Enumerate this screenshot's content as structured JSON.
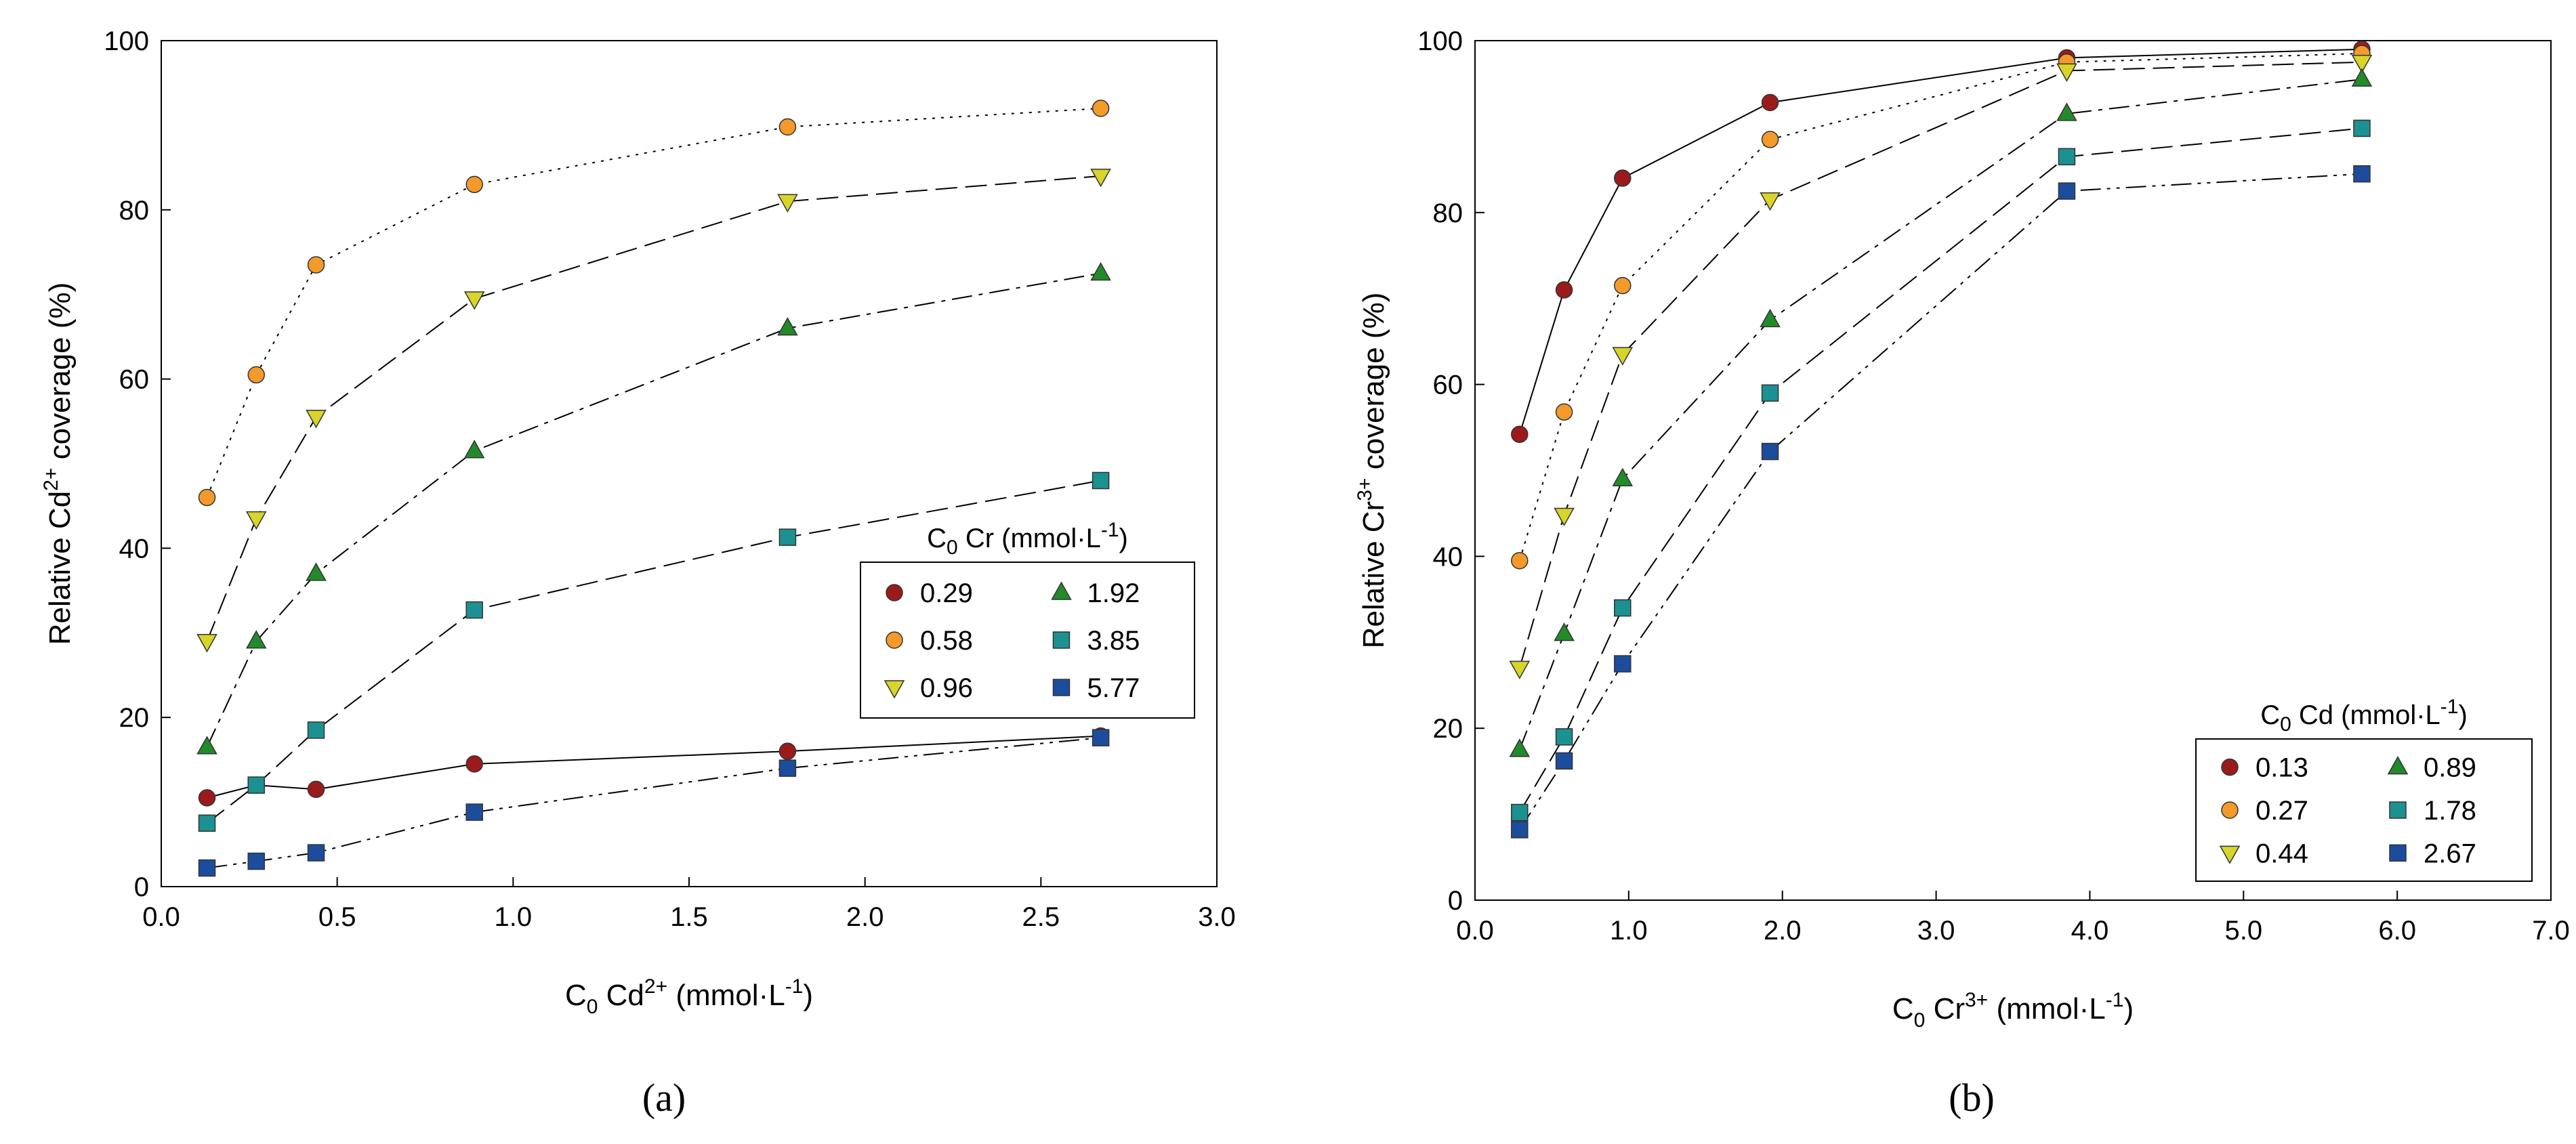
{
  "panel_labels": [
    "(a)",
    "(b)"
  ],
  "chart_data": [
    {
      "type": "line",
      "panel": "a",
      "xlabel": {
        "main": "C",
        "sub": "0",
        "species": "Cd",
        "sup": "2+",
        "unit": "(mmol·L",
        "unit_sup": "-1",
        "unit_end": ")"
      },
      "ylabel": {
        "main": "Relative Cd",
        "sup": "2+",
        "rest": "coverage (%)"
      },
      "xlim": [
        0,
        3
      ],
      "ylim": [
        0,
        100
      ],
      "xticks": [
        0,
        0.5,
        1,
        1.5,
        2,
        2.5,
        3
      ],
      "xtick_labels": [
        "0.0",
        "0.5",
        "1.0",
        "1.5",
        "2.0",
        "2.5",
        "3.0"
      ],
      "yticks": [
        0,
        20,
        40,
        60,
        80,
        100
      ],
      "ytick_labels": [
        "0",
        "20",
        "40",
        "60",
        "80",
        "100"
      ],
      "legend": {
        "title_main": "C",
        "title_sub": "0",
        "title_rest": "Cr (mmol·L",
        "title_sup": "-1",
        "title_end": ")",
        "position": "middle-right"
      },
      "x": [
        0.13,
        0.27,
        0.44,
        0.89,
        1.78,
        2.67
      ],
      "series": [
        {
          "name": "0.29",
          "marker": "circle",
          "color": "#9b1b1b",
          "dash": "solid",
          "values": [
            10.5,
            12,
            11.5,
            14.5,
            16,
            17.8
          ]
        },
        {
          "name": "0.58",
          "marker": "circle",
          "color": "#f39a2b",
          "dash": "dotted",
          "values": [
            46,
            60.5,
            73.5,
            83,
            89.8,
            92
          ]
        },
        {
          "name": "0.96",
          "marker": "triangle-down",
          "color": "#d8d42a",
          "dash": "longdash",
          "values": [
            29,
            43.5,
            55.5,
            69.5,
            81,
            84
          ]
        },
        {
          "name": "1.92",
          "marker": "triangle-up",
          "color": "#238a2a",
          "dash": "dashdot",
          "values": [
            16.5,
            29,
            37,
            51.5,
            66,
            72.5
          ]
        },
        {
          "name": "3.85",
          "marker": "square",
          "color": "#1c9191",
          "dash": "longdash",
          "values": [
            7.5,
            12,
            18.5,
            32.7,
            41.3,
            48
          ]
        },
        {
          "name": "5.77",
          "marker": "square",
          "color": "#1c4d9c",
          "dash": "dashdotdot",
          "values": [
            2.2,
            3,
            4,
            8.8,
            14,
            17.6
          ]
        }
      ]
    },
    {
      "type": "line",
      "panel": "b",
      "xlabel": {
        "main": "C",
        "sub": "0",
        "species": "Cr",
        "sup": "3+",
        "unit": "(mmol·L",
        "unit_sup": "-1",
        "unit_end": ")"
      },
      "ylabel": {
        "main": "Relative Cr",
        "sup": "3+",
        "rest": "coverage (%)"
      },
      "xlim": [
        0,
        7
      ],
      "ylim": [
        0,
        100
      ],
      "xticks": [
        0,
        1,
        2,
        3,
        4,
        5,
        6,
        7
      ],
      "xtick_labels": [
        "0.0",
        "1.0",
        "2.0",
        "3.0",
        "4.0",
        "5.0",
        "6.0",
        "7.0"
      ],
      "yticks": [
        0,
        20,
        40,
        60,
        80,
        100
      ],
      "ytick_labels": [
        "0",
        "20",
        "40",
        "60",
        "80",
        "100"
      ],
      "legend": {
        "title_main": "C",
        "title_sub": "0",
        "title_rest": "Cd (mmol·L",
        "title_sup": "-1",
        "title_end": ")",
        "position": "bottom-right"
      },
      "x": [
        0.29,
        0.58,
        0.96,
        1.92,
        3.85,
        5.77
      ],
      "series": [
        {
          "name": "0.13",
          "marker": "circle",
          "color": "#9b1b1b",
          "dash": "solid",
          "values": [
            54.2,
            71,
            84,
            92.8,
            98,
            99
          ]
        },
        {
          "name": "0.27",
          "marker": "circle",
          "color": "#f39a2b",
          "dash": "dotted",
          "values": [
            39.5,
            56.8,
            71.5,
            88.5,
            97.5,
            98.5
          ]
        },
        {
          "name": "0.44",
          "marker": "triangle-down",
          "color": "#d8d42a",
          "dash": "longdash",
          "values": [
            27,
            44.8,
            63.5,
            81.5,
            96.5,
            97.5
          ]
        },
        {
          "name": "0.89",
          "marker": "triangle-up",
          "color": "#238a2a",
          "dash": "dashdot",
          "values": [
            17.5,
            31,
            49,
            67.5,
            91.5,
            95.5
          ]
        },
        {
          "name": "1.78",
          "marker": "square",
          "color": "#1c9191",
          "dash": "longdash",
          "values": [
            10.2,
            19,
            34,
            59,
            86.5,
            89.8
          ]
        },
        {
          "name": "2.67",
          "marker": "square",
          "color": "#1c4d9c",
          "dash": "dashdotdot",
          "values": [
            8.2,
            16.2,
            27.5,
            52.2,
            82.5,
            84.5
          ]
        }
      ]
    }
  ]
}
